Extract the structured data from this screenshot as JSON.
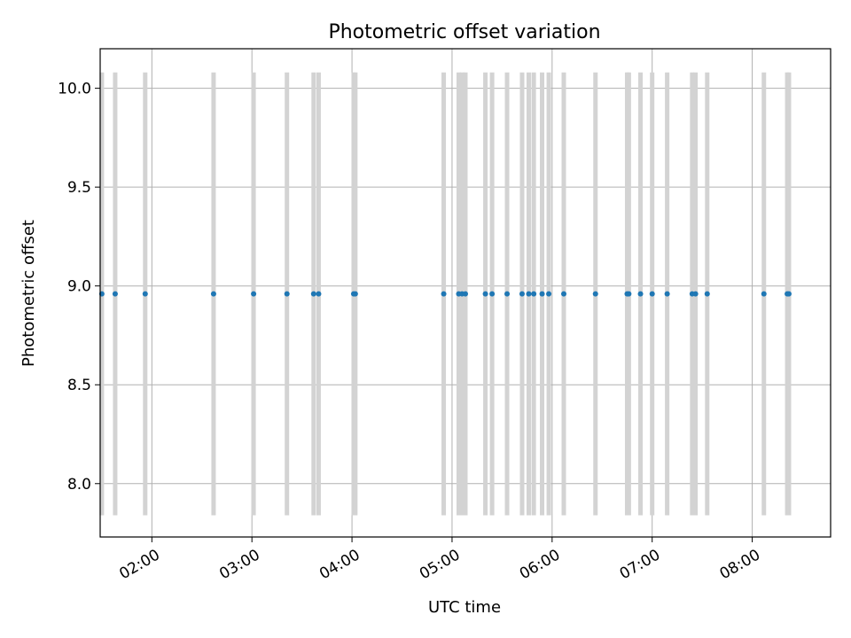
{
  "chart_data": {
    "type": "scatter",
    "title": "Photometric offset variation",
    "xlabel": "UTC time",
    "ylabel": "Photometric offset",
    "x_tick_labels": [
      "02:00",
      "03:00",
      "04:00",
      "05:00",
      "06:00",
      "07:00",
      "08:00"
    ],
    "y_ticks": [
      8.0,
      8.5,
      9.0,
      9.5,
      10.0
    ],
    "y_tick_labels": [
      "8.0",
      "8.5",
      "9.0",
      "9.5",
      "10.0"
    ],
    "xlim": [
      "01:29",
      "08:47"
    ],
    "ylim": [
      7.73,
      10.2
    ],
    "grid": true,
    "marker_color": "#1f77b4",
    "band_color": "#d3d3d3",
    "band_range": [
      7.84,
      10.08
    ],
    "series": [
      {
        "x": [
          "01:30",
          "01:38",
          "01:56",
          "02:37",
          "03:01",
          "03:21",
          "03:37",
          "03:40",
          "04:01",
          "04:02",
          "04:55",
          "05:04",
          "05:06",
          "05:08",
          "05:20",
          "05:24",
          "05:33",
          "05:42",
          "05:46",
          "05:49",
          "05:54",
          "05:58",
          "06:07",
          "06:26",
          "06:45",
          "06:46",
          "06:53",
          "07:00",
          "07:09",
          "07:24",
          "07:26",
          "07:33",
          "08:07",
          "08:21",
          "08:22"
        ],
        "y": [
          8.96,
          8.96,
          8.96,
          8.96,
          8.96,
          8.96,
          8.96,
          8.96,
          8.96,
          8.96,
          8.96,
          8.96,
          8.96,
          8.96,
          8.96,
          8.96,
          8.96,
          8.96,
          8.96,
          8.96,
          8.96,
          8.96,
          8.96,
          8.96,
          8.96,
          8.96,
          8.96,
          8.96,
          8.96,
          8.96,
          8.96,
          8.96,
          8.96,
          8.96,
          8.96
        ]
      }
    ]
  }
}
